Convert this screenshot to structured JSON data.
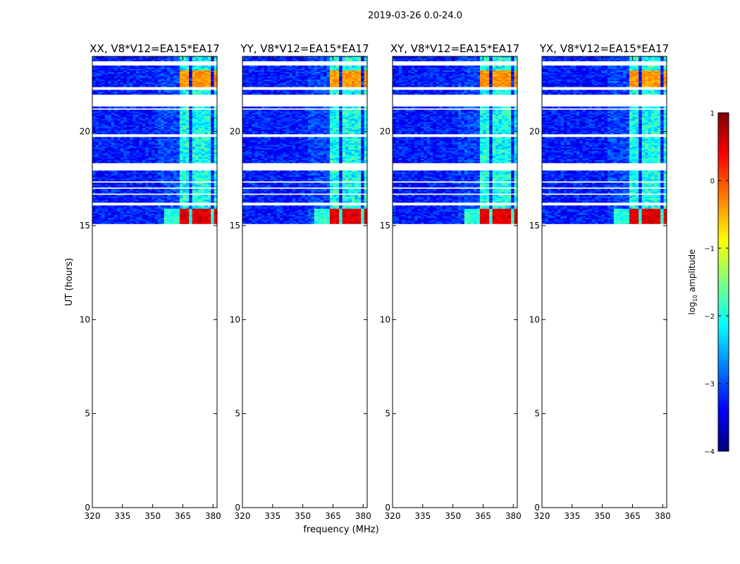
{
  "chart_data": {
    "type": "heatmap",
    "suptitle": "2019-03-26 0.0-24.0",
    "xlabel": "frequency (MHz)",
    "ylabel": "UT (hours)",
    "xlim": [
      320,
      382
    ],
    "ylim": [
      0,
      24
    ],
    "xticks": [
      320,
      335,
      350,
      365,
      380
    ],
    "yticks": [
      0,
      5,
      10,
      15,
      20
    ],
    "data_start_hour": 15.1,
    "panels": [
      {
        "title": "XX, V8*V12=EA15*EA17"
      },
      {
        "title": "YY, V8*V12=EA15*EA17"
      },
      {
        "title": "XY, V8*V12=EA15*EA17"
      },
      {
        "title": "YX, V8*V12=EA15*EA17"
      }
    ],
    "colorbar": {
      "label_base": "log",
      "label_sub": "10",
      "label_rest": " amplitude",
      "range": [
        -4,
        1
      ],
      "ticks": [
        -4,
        -3,
        -2,
        -1,
        0,
        1
      ],
      "ticklabels": [
        "−4",
        "−3",
        "−2",
        "−1",
        "0",
        "1"
      ],
      "colormap": "jet",
      "colormap_stops": [
        "#00007f",
        "#0000ff",
        "#007fff",
        "#00ffff",
        "#7fff7f",
        "#ffff00",
        "#ff7f00",
        "#ff0000",
        "#7f0000"
      ]
    },
    "flagged_bands_hours": [
      [
        23.5,
        23.72
      ],
      [
        22.25,
        22.35
      ],
      [
        21.35,
        22.0
      ],
      [
        21.2,
        21.25
      ],
      [
        19.7,
        19.9
      ],
      [
        17.95,
        18.3
      ],
      [
        17.25,
        17.35
      ],
      [
        17.0,
        17.08
      ],
      [
        16.6,
        16.68
      ],
      [
        16.1,
        16.2
      ],
      [
        15.95,
        16.02
      ]
    ],
    "bright_channels_mhz": [
      [
        364,
        368.5
      ],
      [
        369.5,
        374
      ],
      [
        375,
        379
      ],
      [
        380,
        381.5
      ]
    ],
    "rfi_segments": [
      {
        "t0": 22.3,
        "t1": 23.3,
        "level": 0.3
      },
      {
        "t0": 15.1,
        "t1": 15.9,
        "level": 0.7
      }
    ]
  }
}
